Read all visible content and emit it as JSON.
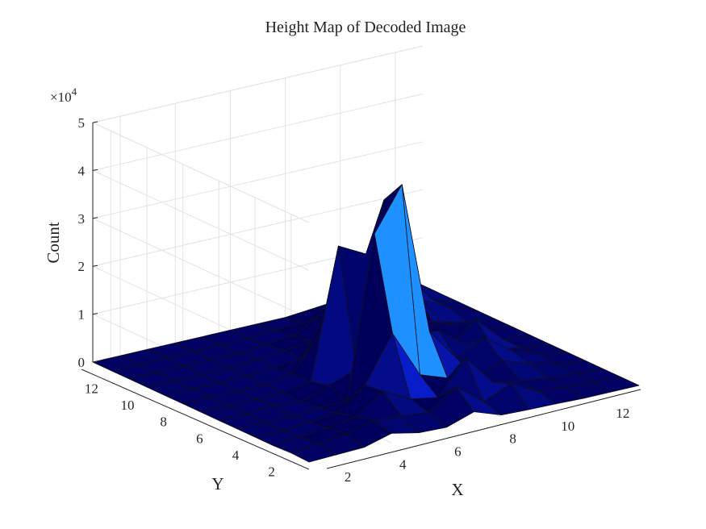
{
  "figure": {
    "title": "Height Map of Decoded Image"
  },
  "chart_data": {
    "type": "surface",
    "title": "Height Map of Decoded Image",
    "xlabel": "X",
    "ylabel": "Y",
    "zlabel": "Count",
    "x": [
      1,
      2,
      3,
      4,
      5,
      6,
      7,
      8,
      9,
      10,
      11,
      12,
      13
    ],
    "y": [
      1,
      2,
      3,
      4,
      5,
      6,
      7,
      8,
      9,
      10,
      11,
      12,
      13
    ],
    "x_ticks": [
      2,
      4,
      6,
      8,
      10,
      12
    ],
    "y_ticks": [
      2,
      4,
      6,
      8,
      10,
      12
    ],
    "z_ticks": [
      0,
      1,
      2,
      3,
      4,
      5
    ],
    "z_tick_labels": [
      "0",
      "1",
      "2",
      "3",
      "4",
      "5"
    ],
    "z_multiplier": "×10",
    "z_exponent": "4",
    "xlim": [
      1,
      13
    ],
    "ylim": [
      1,
      13
    ],
    "zlim": [
      0,
      50000
    ],
    "grid": true,
    "colormap": [
      "#00005a",
      "#0a1fd6",
      "#1e90ff"
    ],
    "z": [
      [
        0,
        200,
        400,
        2000,
        800,
        600,
        2500,
        500,
        300,
        200,
        0,
        0,
        0
      ],
      [
        200,
        800,
        1500,
        3000,
        2500,
        2000,
        6000,
        1500,
        4000,
        1000,
        500,
        300,
        0
      ],
      [
        0,
        500,
        1000,
        2000,
        6000,
        3000,
        2000,
        9000,
        2500,
        1500,
        800,
        300,
        0
      ],
      [
        0,
        0,
        500,
        1000,
        5500,
        15000,
        5000,
        3000,
        1500,
        4000,
        2000,
        500,
        0
      ],
      [
        0,
        0,
        0,
        500,
        500,
        34000,
        43000,
        11000,
        4000,
        7000,
        3000,
        1000,
        0
      ],
      [
        0,
        0,
        500,
        0,
        2000,
        4000,
        38000,
        9000,
        8000,
        4000,
        1500,
        500,
        0
      ],
      [
        0,
        0,
        0,
        0,
        1000,
        28000,
        25000,
        3000,
        12000,
        1500,
        6000,
        500,
        0
      ],
      [
        0,
        0,
        0,
        0,
        1000,
        8000,
        12000,
        1500,
        3000,
        5000,
        3000,
        1000,
        0
      ],
      [
        0,
        0,
        0,
        0,
        500,
        1000,
        11000,
        8000,
        7000,
        4000,
        2000,
        600,
        0
      ],
      [
        0,
        0,
        0,
        0,
        500,
        1000,
        1500,
        5000,
        4000,
        7000,
        5000,
        2000,
        0
      ],
      [
        0,
        0,
        0,
        0,
        0,
        500,
        1000,
        4000,
        6000,
        3000,
        9000,
        2000,
        0
      ],
      [
        0,
        0,
        0,
        0,
        0,
        0,
        500,
        500,
        1500,
        4000,
        2000,
        4000,
        0
      ],
      [
        0,
        0,
        0,
        0,
        0,
        0,
        0,
        0,
        500,
        1000,
        2000,
        3000,
        0
      ]
    ]
  }
}
